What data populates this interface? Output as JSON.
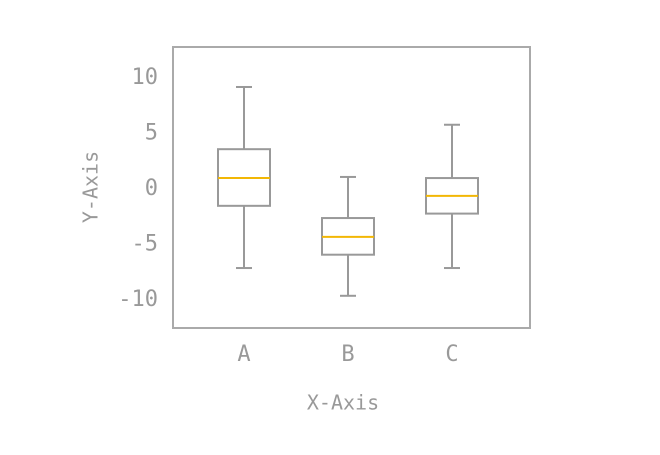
{
  "chart_data": {
    "type": "box",
    "x_label": "X-Axis",
    "y_label": "Y-Axis",
    "categories": [
      "A",
      "B",
      "C"
    ],
    "boxes": [
      {
        "whislo": -7.1,
        "q1": -1.5,
        "med": 1.0,
        "q3": 3.6,
        "whishi": 9.2
      },
      {
        "whislo": -9.6,
        "q1": -5.9,
        "med": -4.3,
        "q3": -2.6,
        "whishi": 1.1
      },
      {
        "whislo": -7.1,
        "q1": -2.2,
        "med": -0.6,
        "q3": 1.0,
        "whishi": 5.8
      }
    ],
    "box_color": "#999999",
    "median_color": "#f2b705",
    "ylim": [
      -12.5,
      12.8
    ],
    "yticks": [
      -10,
      -5,
      0,
      5,
      10
    ],
    "grid": false
  }
}
